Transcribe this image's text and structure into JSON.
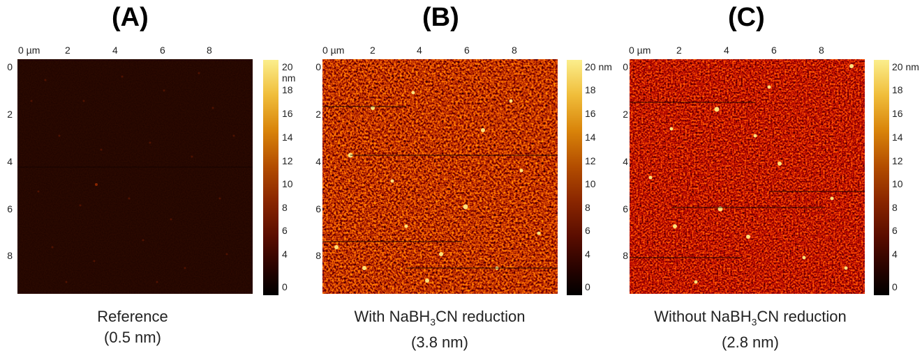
{
  "panels": [
    {
      "letter": "(A)",
      "x_axis_ticks": [
        "0 µm",
        "2",
        "4",
        "6",
        "8"
      ],
      "y_axis_ticks": [
        "0",
        "2",
        "4",
        "6",
        "8"
      ],
      "colorbar_ticks": [
        "20 nm",
        "18",
        "16",
        "14",
        "12",
        "10",
        "8",
        "6",
        "4",
        "0"
      ],
      "caption_line1": "Reference",
      "caption_line2": "(0.5 nm)",
      "roughness_nm": 0.5
    },
    {
      "letter": "(B)",
      "x_axis_ticks": [
        "0 µm",
        "2",
        "4",
        "6",
        "8"
      ],
      "y_axis_ticks": [
        "0",
        "2",
        "4",
        "6",
        "8"
      ],
      "colorbar_ticks": [
        "20 nm",
        "18",
        "16",
        "14",
        "12",
        "10",
        "8",
        "6",
        "4",
        "0"
      ],
      "caption_prefix": "With NaBH",
      "caption_sub": "3",
      "caption_suffix": "CN reduction",
      "caption_line2": "(3.8 nm)",
      "roughness_nm": 3.8
    },
    {
      "letter": "(C)",
      "x_axis_ticks": [
        "0 µm",
        "2",
        "4",
        "6",
        "8"
      ],
      "y_axis_ticks": [
        "0",
        "2",
        "4",
        "6",
        "8"
      ],
      "colorbar_ticks": [
        "20 nm",
        "18",
        "16",
        "14",
        "12",
        "10",
        "8",
        "6",
        "4",
        "0"
      ],
      "caption_prefix": "Without NaBH",
      "caption_sub": "3",
      "caption_suffix": "CN reduction",
      "caption_line2": "(2.8 nm)",
      "roughness_nm": 2.8
    }
  ],
  "colorscale": {
    "low": "#000000",
    "mid": "#8a2600",
    "high": "#fbee8c"
  }
}
